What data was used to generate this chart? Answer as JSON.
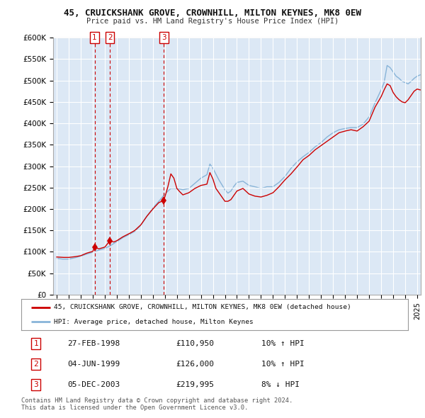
{
  "title": "45, CRUICKSHANK GROVE, CROWNHILL, MILTON KEYNES, MK8 0EW",
  "subtitle": "Price paid vs. HM Land Registry's House Price Index (HPI)",
  "ylabel_ticks": [
    "£0",
    "£50K",
    "£100K",
    "£150K",
    "£200K",
    "£250K",
    "£300K",
    "£350K",
    "£400K",
    "£450K",
    "£500K",
    "£550K",
    "£600K"
  ],
  "ylim": [
    0,
    600000
  ],
  "yticks": [
    0,
    50000,
    100000,
    150000,
    200000,
    250000,
    300000,
    350000,
    400000,
    450000,
    500000,
    550000,
    600000
  ],
  "transactions": [
    {
      "label": "1",
      "year": 1998.15,
      "price": 110950,
      "date": "27-FEB-1998",
      "price_str": "£110,950",
      "pct": "10%",
      "dir": "↑"
    },
    {
      "label": "2",
      "year": 1999.43,
      "price": 126000,
      "date": "04-JUN-1999",
      "price_str": "£126,000",
      "pct": "10%",
      "dir": "↑"
    },
    {
      "label": "3",
      "year": 2003.92,
      "price": 219995,
      "date": "05-DEC-2003",
      "price_str": "£219,995",
      "pct": "8%",
      "dir": "↓"
    }
  ],
  "red_line_color": "#cc0000",
  "blue_line_color": "#88b4d8",
  "chart_bg_color": "#dce8f5",
  "marker_box_color": "#cc0000",
  "grid_color": "#ffffff",
  "background_color": "#ffffff",
  "legend_line1": "45, CRUICKSHANK GROVE, CROWNHILL, MILTON KEYNES, MK8 0EW (detached house)",
  "legend_line2": "HPI: Average price, detached house, Milton Keynes",
  "footer1": "Contains HM Land Registry data © Crown copyright and database right 2024.",
  "footer2": "This data is licensed under the Open Government Licence v3.0.",
  "xlim_left": 1994.7,
  "xlim_right": 2025.3
}
